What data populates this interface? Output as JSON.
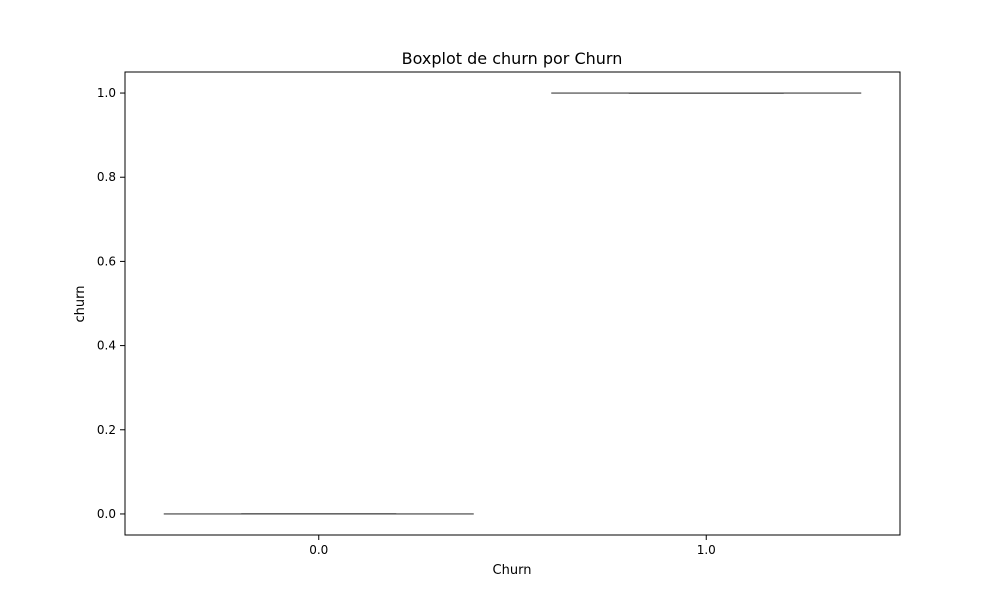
{
  "chart_data": {
    "type": "boxplot",
    "title": "Boxplot de churn por Churn",
    "xlabel": "Churn",
    "ylabel": "churn",
    "categories": [
      "0.0",
      "1.0"
    ],
    "boxes": [
      {
        "category": "0.0",
        "whisker_low": 0.0,
        "q1": 0.0,
        "median": 0.0,
        "q3": 0.0,
        "whisker_high": 0.0
      },
      {
        "category": "1.0",
        "whisker_low": 1.0,
        "q1": 1.0,
        "median": 1.0,
        "q3": 1.0,
        "whisker_high": 1.0
      }
    ],
    "ylim": [
      -0.05,
      1.05
    ],
    "yticks": [
      0.0,
      0.2,
      0.4,
      0.6,
      0.8,
      1.0
    ],
    "ytick_labels": [
      "0.0",
      "0.2",
      "0.4",
      "0.6",
      "0.8",
      "1.0"
    ],
    "grid": false,
    "line_color": "#3f3f3f",
    "box_fill": "#ffffff"
  }
}
